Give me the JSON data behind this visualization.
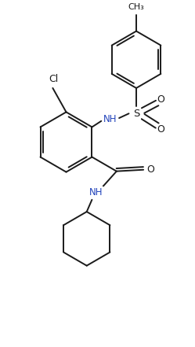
{
  "bg_color": "#ffffff",
  "line_color": "#1a1a1a",
  "nh_color": "#2244bb",
  "line_width": 1.4,
  "fig_width": 2.49,
  "fig_height": 4.41,
  "dpi": 100,
  "xlim": [
    0.0,
    2.6
  ],
  "ylim": [
    0.0,
    4.6
  ]
}
